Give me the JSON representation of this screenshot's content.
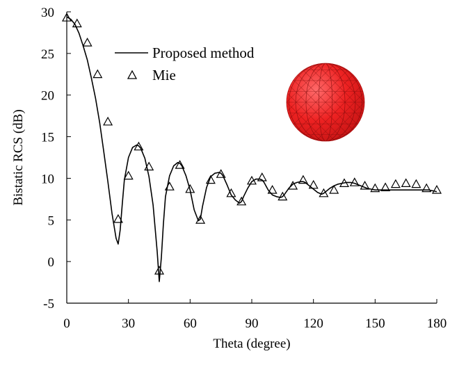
{
  "chart_data": {
    "type": "line",
    "xlabel": "Theta (degree)",
    "ylabel": "Bistatic RCS (dB)",
    "xlim": [
      0,
      180
    ],
    "ylim": [
      -5,
      30
    ],
    "xticks": [
      0,
      30,
      60,
      90,
      120,
      150,
      180
    ],
    "yticks": [
      -5,
      0,
      5,
      10,
      15,
      20,
      25,
      30
    ],
    "grid": false,
    "legend_position": "upper-left",
    "legend": [
      {
        "label": "Proposed method",
        "style": "line"
      },
      {
        "label": "Mie",
        "style": "triangle-marker"
      }
    ],
    "inset": {
      "description": "red meshed sphere",
      "color": "#ee2222"
    },
    "series": [
      {
        "name": "Proposed method",
        "style": "line",
        "color": "#000000",
        "x": [
          0,
          2,
          4,
          6,
          8,
          10,
          12,
          14,
          16,
          18,
          20,
          22,
          24,
          25,
          26,
          27,
          28,
          30,
          32,
          34,
          35,
          36,
          38,
          40,
          42,
          44,
          45,
          46,
          47,
          48,
          50,
          52,
          54,
          55,
          56,
          58,
          60,
          62,
          64,
          65,
          66,
          68,
          70,
          72,
          74,
          75,
          76,
          78,
          80,
          82,
          84,
          85,
          86,
          88,
          90,
          92,
          94,
          95,
          96,
          98,
          100,
          102,
          104,
          105,
          106,
          108,
          110,
          112,
          114,
          115,
          116,
          118,
          120,
          122,
          124,
          125,
          126,
          128,
          130,
          132,
          134,
          136,
          138,
          140,
          142,
          144,
          146,
          148,
          150,
          152,
          154,
          156,
          158,
          160,
          162,
          164,
          166,
          168,
          170,
          172,
          174,
          176,
          178,
          180
        ],
        "y": [
          29.4,
          29.1,
          28.5,
          27.4,
          25.9,
          24.2,
          22.0,
          19.6,
          16.7,
          13.2,
          9.6,
          5.8,
          2.8,
          2.1,
          3.8,
          6.9,
          9.8,
          12.5,
          13.7,
          14.0,
          13.9,
          13.6,
          12.4,
          10.2,
          6.8,
          1.2,
          -2.4,
          0.5,
          4.5,
          7.8,
          10.3,
          11.5,
          11.9,
          11.8,
          11.5,
          10.3,
          8.6,
          6.2,
          4.9,
          5.1,
          6.6,
          8.9,
          10.2,
          10.6,
          10.7,
          10.6,
          10.3,
          9.2,
          8.0,
          7.4,
          7.0,
          7.2,
          7.8,
          8.8,
          9.6,
          9.9,
          9.9,
          9.8,
          9.5,
          8.6,
          8.0,
          7.8,
          7.7,
          7.8,
          8.1,
          8.8,
          9.3,
          9.5,
          9.6,
          9.6,
          9.5,
          9.1,
          8.7,
          8.3,
          8.1,
          8.2,
          8.4,
          8.8,
          9.1,
          9.3,
          9.4,
          9.5,
          9.5,
          9.4,
          9.2,
          9.0,
          8.8,
          8.7,
          8.6,
          8.6,
          8.6,
          8.6,
          8.6,
          8.6,
          8.6,
          8.6,
          8.6,
          8.6,
          8.6,
          8.6,
          8.6,
          8.6,
          8.5,
          8.4
        ]
      },
      {
        "name": "Mie",
        "style": "triangle-marker",
        "color": "#000000",
        "x": [
          0,
          5,
          10,
          15,
          20,
          25,
          30,
          35,
          40,
          45,
          50,
          55,
          60,
          65,
          70,
          75,
          80,
          85,
          90,
          95,
          100,
          105,
          110,
          115,
          120,
          125,
          130,
          135,
          140,
          145,
          150,
          155,
          160,
          165,
          170,
          175,
          180
        ],
        "y": [
          29.3,
          28.6,
          26.3,
          22.5,
          16.8,
          5.1,
          10.3,
          13.8,
          11.4,
          -1.1,
          9.0,
          11.6,
          8.7,
          5.0,
          9.8,
          10.5,
          8.2,
          7.2,
          9.7,
          10.1,
          8.6,
          7.8,
          9.1,
          9.8,
          9.2,
          8.2,
          8.6,
          9.4,
          9.5,
          9.1,
          8.8,
          8.9,
          9.3,
          9.4,
          9.3,
          8.8,
          8.6
        ]
      }
    ]
  }
}
